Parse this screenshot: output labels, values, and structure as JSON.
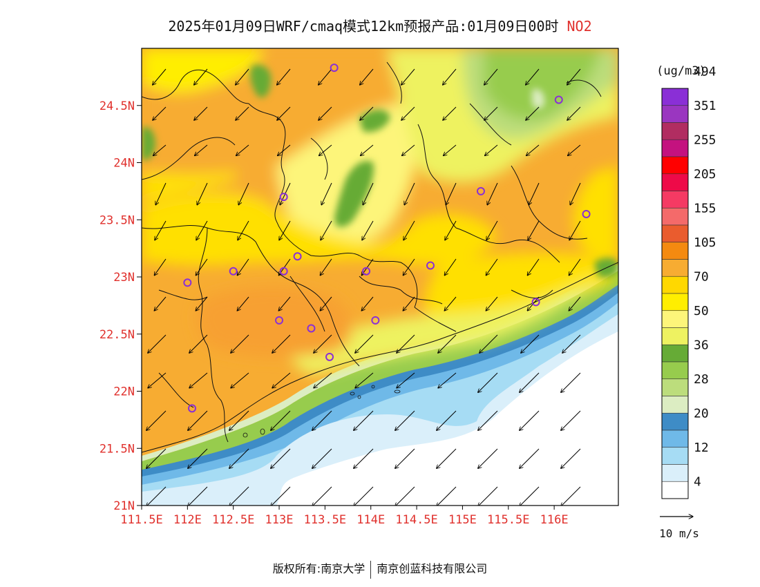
{
  "title": {
    "text": "2025年01月09日WRF/cmaq模式12km预报产品:01月09日00时",
    "pollutant": "NO2"
  },
  "map": {
    "lat_ticks": [
      "24.5N",
      "24N",
      "23.5N",
      "23N",
      "22.5N",
      "22N",
      "21.5N",
      "21N"
    ],
    "lon_ticks": [
      "111.5E",
      "112E",
      "112.5E",
      "113E",
      "113.5E",
      "114E",
      "114.5E",
      "115E",
      "115.5E",
      "116E"
    ],
    "tick_color": "#e0302c",
    "lon_range": [
      111.5,
      116.7
    ],
    "lat_range": [
      21.0,
      25.0
    ],
    "stations": [
      [
        112.0,
        22.95
      ],
      [
        112.5,
        23.05
      ],
      [
        113.05,
        23.05
      ],
      [
        113.2,
        23.18
      ],
      [
        113.95,
        23.05
      ],
      [
        114.65,
        23.1
      ],
      [
        115.2,
        23.75
      ],
      [
        113.0,
        22.62
      ],
      [
        113.35,
        22.55
      ],
      [
        113.55,
        22.3
      ],
      [
        114.05,
        22.62
      ],
      [
        115.8,
        22.78
      ],
      [
        112.05,
        21.85
      ],
      [
        113.05,
        23.7
      ],
      [
        113.6,
        24.83
      ],
      [
        116.05,
        24.55
      ],
      [
        116.35,
        23.55
      ]
    ],
    "wind_reference": "10 m/s"
  },
  "legend": {
    "unit": "(ug/m3)",
    "colors": [
      "#ffffff",
      "#daeffa",
      "#a6dcf4",
      "#6fb9e8",
      "#3e8cc6",
      "#dcedc2",
      "#bcdd7c",
      "#97cc4d",
      "#66ab36",
      "#eef261",
      "#fdf57a",
      "#ffee00",
      "#ffd800",
      "#f7ac32",
      "#f48a10",
      "#ea5c2e",
      "#f46a6a",
      "#f53a63",
      "#ee0a48",
      "#ff0000",
      "#c4127f",
      "#b12d61",
      "#9a36c0",
      "#8a2fd6"
    ],
    "labels": [
      "4",
      "12",
      "20",
      "28",
      "36",
      "50",
      "70",
      "105",
      "155",
      "205",
      "255",
      "351",
      "494"
    ]
  },
  "copyright": {
    "prefix": "版权所有:",
    "org1": "南京大学",
    "org2": "南京创蓝科技有限公司"
  }
}
